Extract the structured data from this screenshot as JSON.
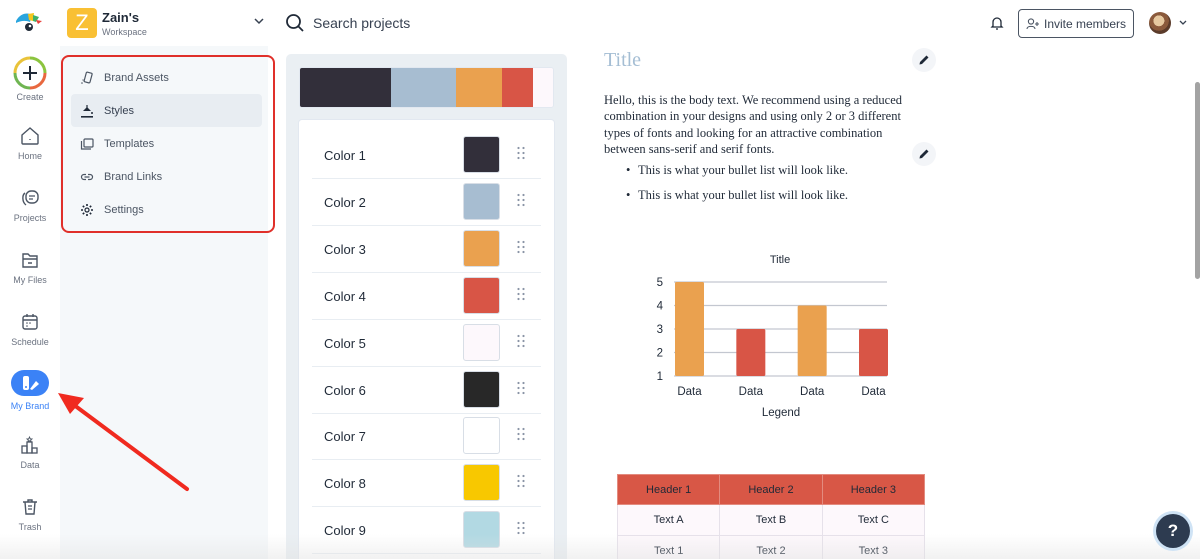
{
  "workspace": {
    "initial": "Z",
    "name": "Zain's",
    "subtitle": "Workspace"
  },
  "search": {
    "placeholder": "Search projects"
  },
  "header": {
    "invite_label": "Invite members"
  },
  "nav": {
    "items": [
      {
        "label": "Create",
        "icon": "plus-icon"
      },
      {
        "label": "Home",
        "icon": "home-icon"
      },
      {
        "label": "Projects",
        "icon": "projects-icon"
      },
      {
        "label": "My Files",
        "icon": "folder-icon"
      },
      {
        "label": "Schedule",
        "icon": "calendar-icon"
      },
      {
        "label": "My Brand",
        "icon": "brand-icon",
        "active": true
      },
      {
        "label": "Data",
        "icon": "data-icon"
      },
      {
        "label": "Trash",
        "icon": "trash-icon"
      }
    ]
  },
  "brand_menu": {
    "items": [
      {
        "label": "Brand Assets",
        "icon": "brand-assets-icon"
      },
      {
        "label": "Styles",
        "icon": "paint-bucket-icon",
        "active": true
      },
      {
        "label": "Templates",
        "icon": "templates-icon"
      },
      {
        "label": "Brand Links",
        "icon": "link-icon"
      },
      {
        "label": "Settings",
        "icon": "gear-icon"
      }
    ]
  },
  "palette": {
    "bar": [
      "#322f3a",
      "#a7bdd1",
      "#eaa14f",
      "#d85546",
      "#fdf8fc"
    ],
    "colors": [
      {
        "name": "Color 1",
        "hex": "#322f3a"
      },
      {
        "name": "Color 2",
        "hex": "#a7bdd1"
      },
      {
        "name": "Color 3",
        "hex": "#eaa14f"
      },
      {
        "name": "Color 4",
        "hex": "#d85546"
      },
      {
        "name": "Color 5",
        "hex": "#fdf8fc"
      },
      {
        "name": "Color 6",
        "hex": "#282828"
      },
      {
        "name": "Color 7",
        "hex": "#ffffff"
      },
      {
        "name": "Color 8",
        "hex": "#f8c800"
      },
      {
        "name": "Color 9",
        "hex": "#b2d9e3"
      }
    ]
  },
  "preview": {
    "title": "Title",
    "body": "Hello, this is the body text. We recommend using a reduced combination in your designs and using only 2 or 3 different types of fonts and looking for an attractive combination between sans-serif and serif fonts.",
    "bullets": [
      "This is what your bullet list will look like.",
      "This is what your bullet list will look like."
    ],
    "table": {
      "headers": [
        "Header 1",
        "Header 2",
        "Header 3"
      ],
      "rows": [
        [
          "Text A",
          "Text B",
          "Text C"
        ],
        [
          "Text 1",
          "Text 2",
          "Text 3"
        ]
      ]
    }
  },
  "chart_data": {
    "type": "bar",
    "title": "Title",
    "categories": [
      "Data",
      "Data",
      "Data",
      "Data"
    ],
    "values": [
      5,
      3,
      4,
      3
    ],
    "colors": [
      "#eaa14f",
      "#d85546",
      "#eaa14f",
      "#d85546"
    ],
    "xlabel": "Legend",
    "ylabel": "",
    "yticks": [
      1,
      2,
      3,
      4,
      5
    ],
    "ylim": [
      1,
      5
    ],
    "grid": true
  },
  "help": {
    "label": "?"
  }
}
